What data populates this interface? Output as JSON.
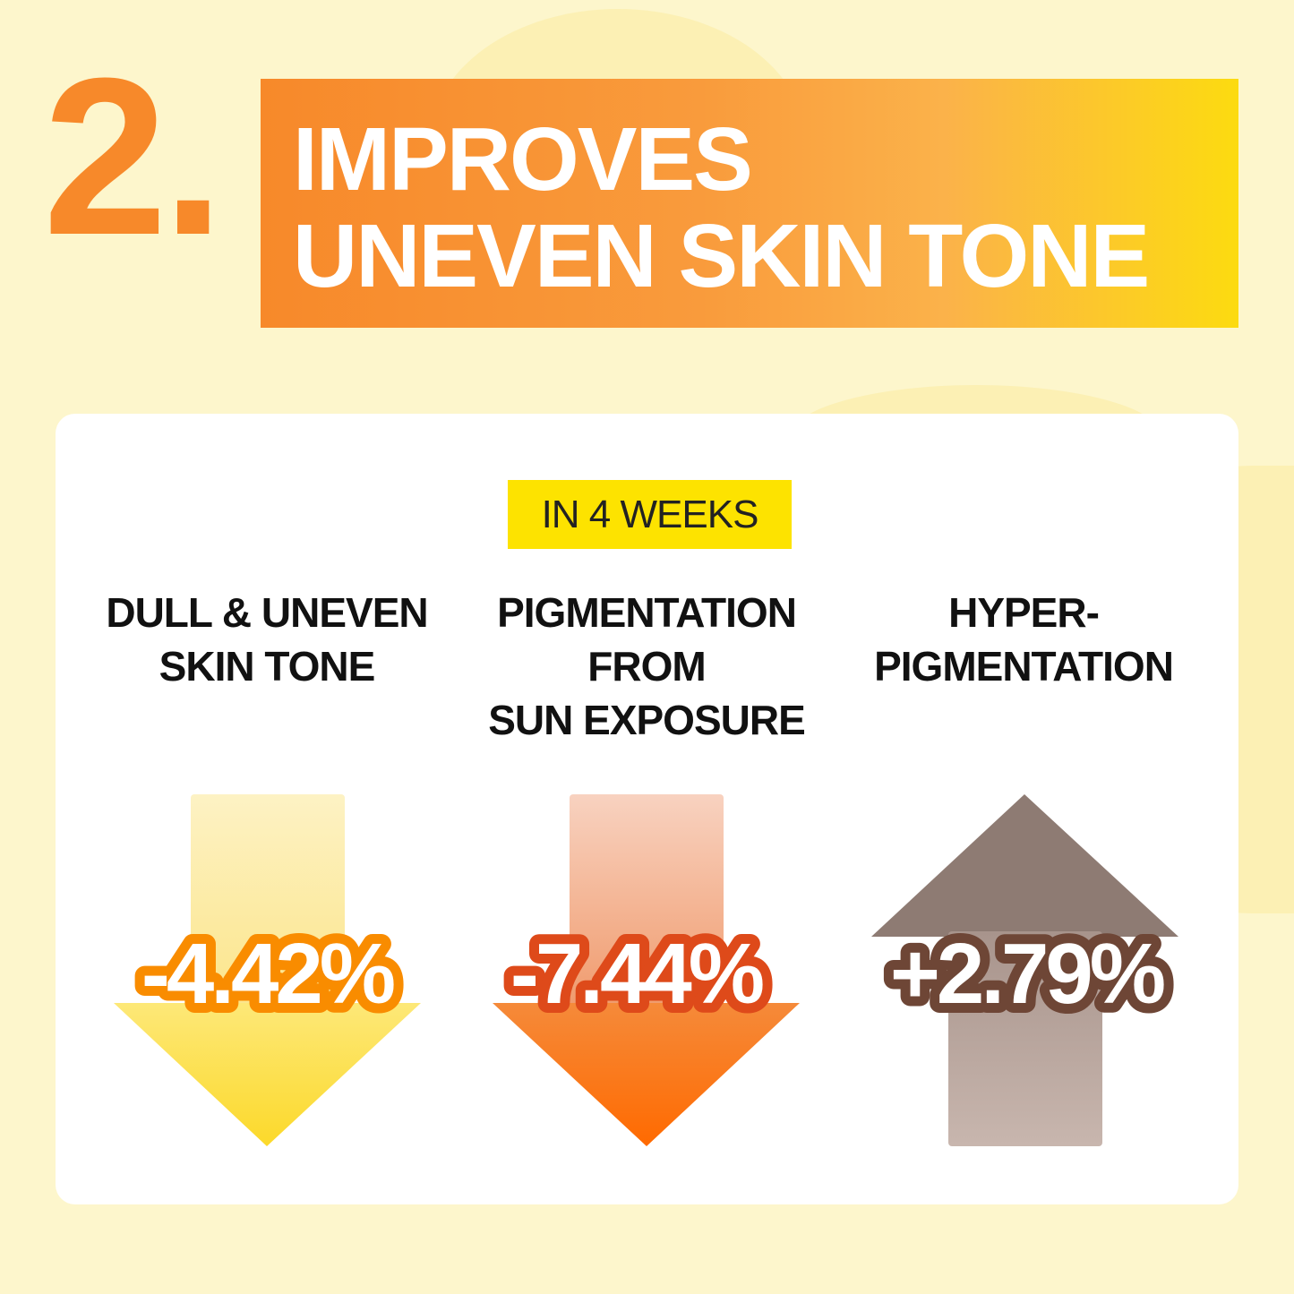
{
  "header": {
    "number": "2.",
    "title_line1": "IMPROVES",
    "title_line2": "UNEVEN SKIN TONE"
  },
  "badge": "IN 4 WEEKS",
  "metrics": [
    {
      "label_lines": [
        "DULL & UNEVEN",
        "SKIN TONE"
      ],
      "value": "-4.42%",
      "direction": "down",
      "color": "#f98c00"
    },
    {
      "label_lines": [
        "PIGMENTATION",
        "FROM",
        "SUN EXPOSURE"
      ],
      "value": "-7.44%",
      "direction": "down",
      "color": "#de4a1a"
    },
    {
      "label_lines": [
        "HYPER-",
        "PIGMENTATION"
      ],
      "value": "+2.79%",
      "direction": "up",
      "color": "#6e4636"
    }
  ],
  "colors": {
    "accent_orange": "#f7892a",
    "accent_yellow": "#fde300",
    "background": "#fdf6cc"
  }
}
